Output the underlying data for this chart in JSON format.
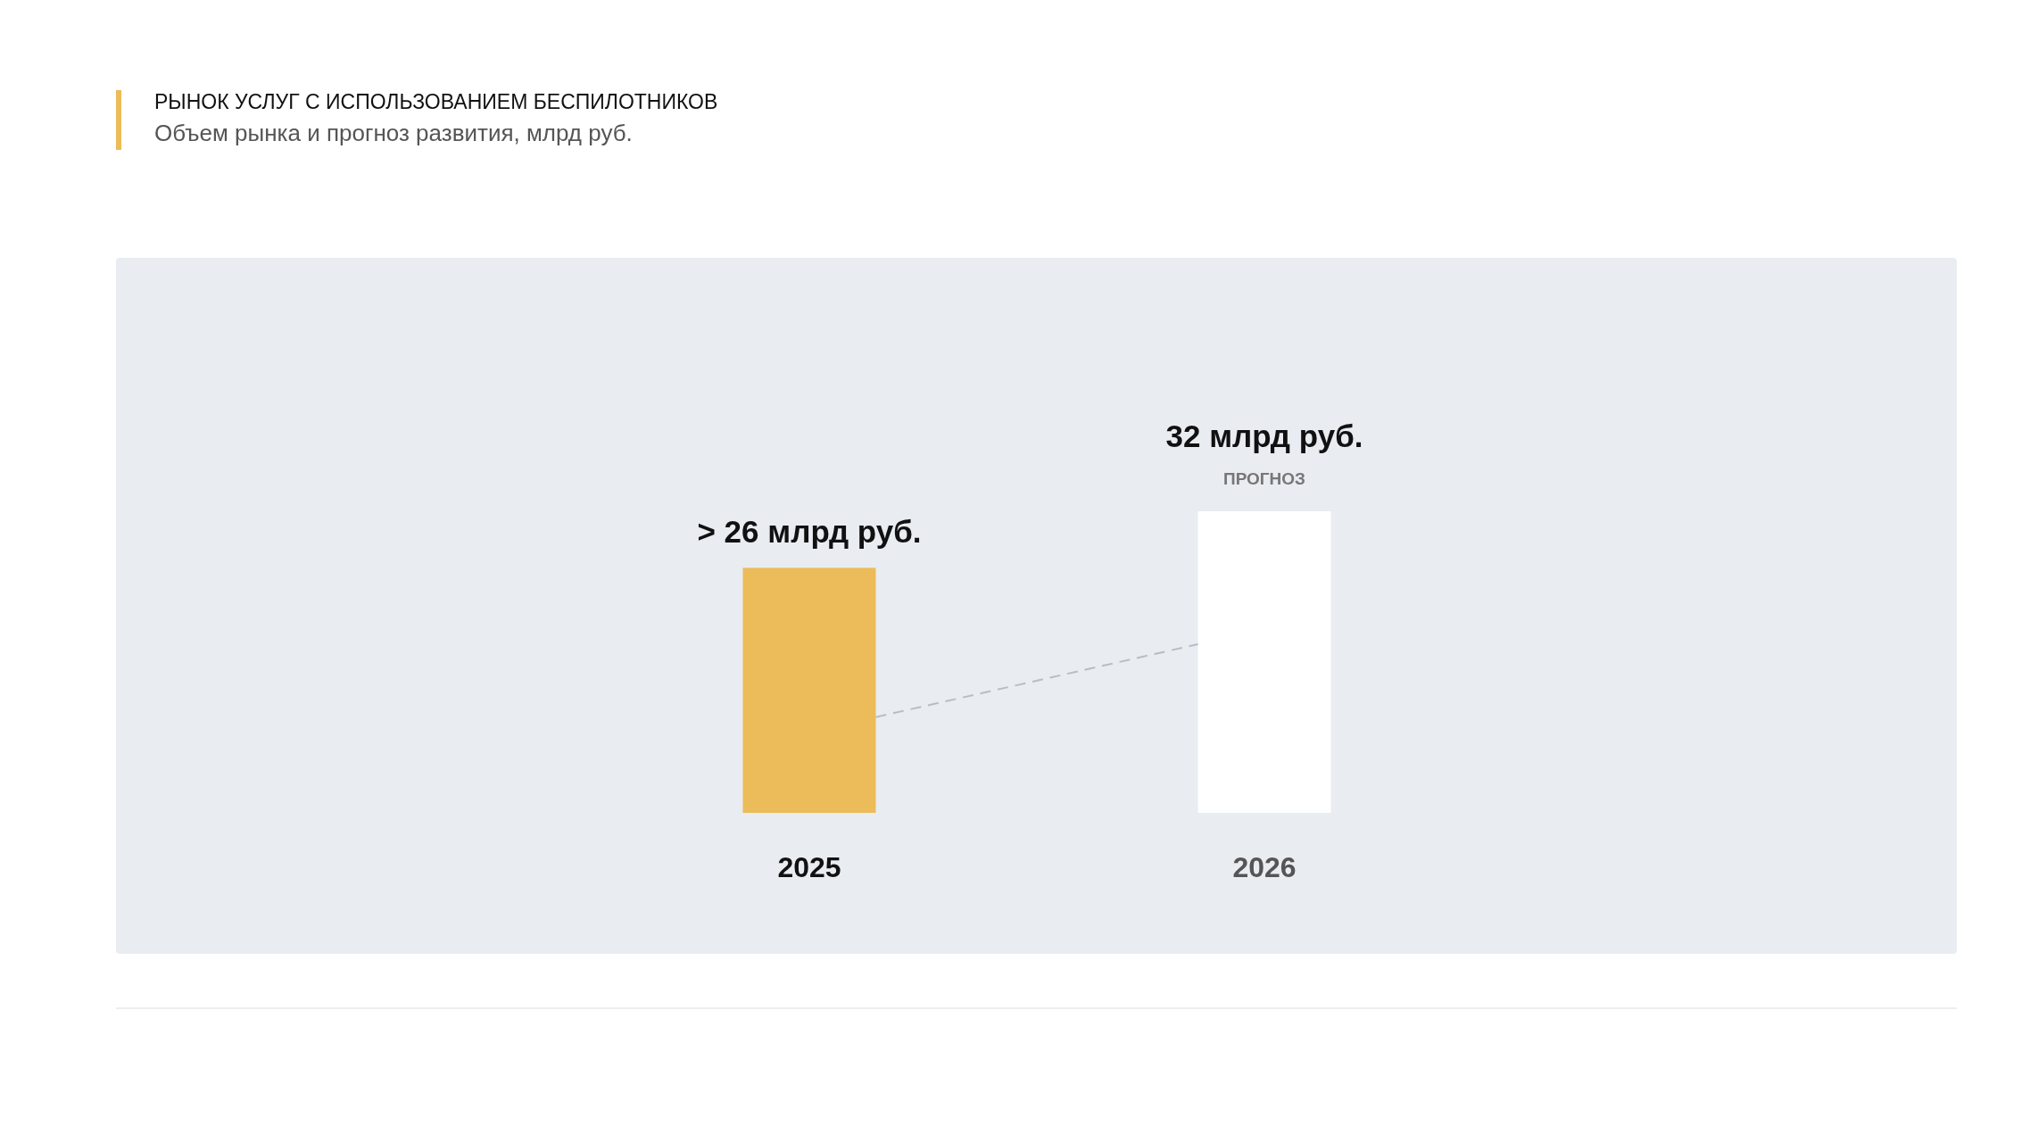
{
  "chart_data": {
    "type": "bar",
    "title": "РЫНОК УСЛУГ С ИСПОЛЬЗОВАНИЕМ БЕСПИЛОТНИКОВ",
    "subtitle": "Объем рынка и прогноз развития, млрд руб.",
    "categories": [
      "2025",
      "2026"
    ],
    "values": [
      26,
      32
    ],
    "colors": [
      "#ecbb5a",
      "#ffffff"
    ],
    "value_labels": [
      "> 26 млрд руб.",
      "32 млрд руб."
    ],
    "annotations": [
      {
        "text": "ПРОГНОЗ",
        "x": "2026",
        "y": 32
      }
    ],
    "grid": false
  }
}
